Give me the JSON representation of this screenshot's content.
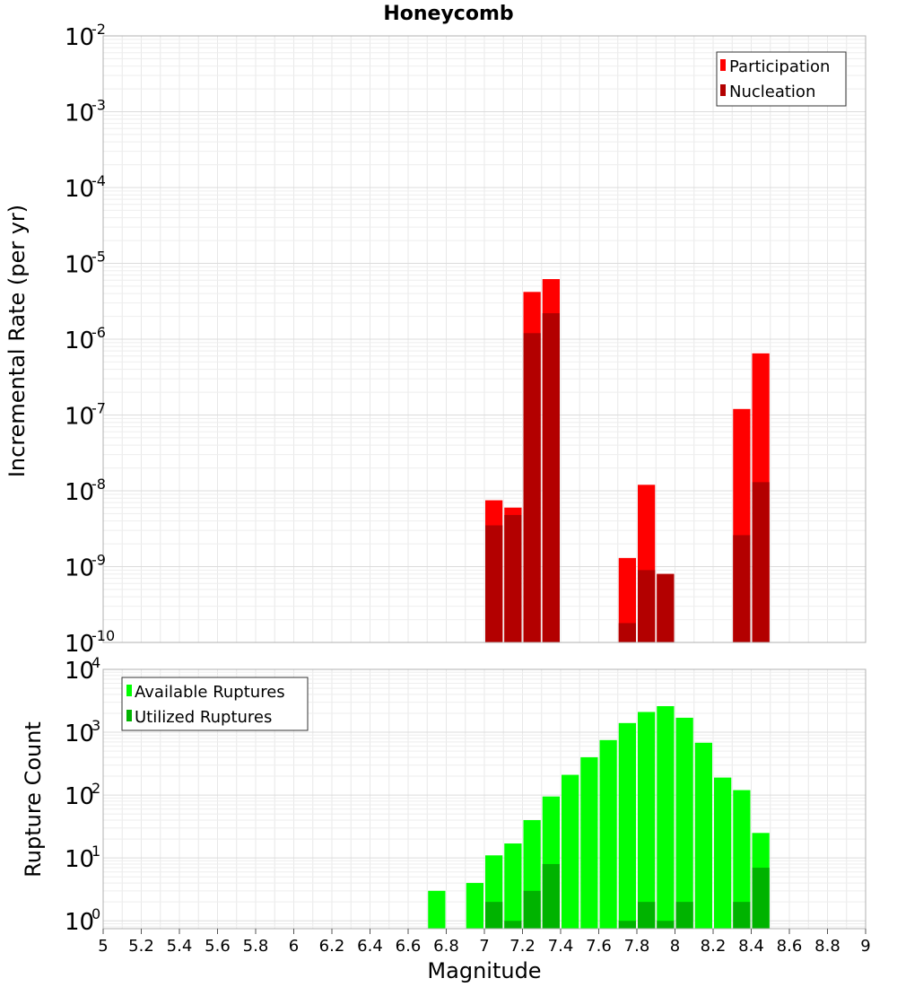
{
  "title": "Honeycomb",
  "xlabel": "Magnitude",
  "x_ticks": [
    "5",
    "5.2",
    "5.4",
    "5.6",
    "5.8",
    "6",
    "6.2",
    "6.4",
    "6.6",
    "6.8",
    "7",
    "7.2",
    "7.4",
    "7.6",
    "7.8",
    "8",
    "8.2",
    "8.4",
    "8.6",
    "8.8",
    "9"
  ],
  "colors": {
    "participation": "#ff0000",
    "nucleation": "#b30000",
    "available": "#00ff00",
    "utilized": "#00b300",
    "grid": "#e8e8e8",
    "frame": "#b0b0b0"
  },
  "chart_data": [
    {
      "type": "bar",
      "ylabel": "Incremental Rate (per yr)",
      "yscale": "log",
      "ylim": [
        1e-10,
        0.01
      ],
      "xlim": [
        5,
        9
      ],
      "y_tick_exponents": [
        "-2",
        "-3",
        "-4",
        "-5",
        "-6",
        "-7",
        "-8",
        "-9",
        "-10"
      ],
      "legend_position": "top-right",
      "legend": [
        "Participation",
        "Nucleation"
      ],
      "x": [
        7.05,
        7.15,
        7.25,
        7.35,
        7.75,
        7.85,
        7.95,
        8.35,
        8.45
      ],
      "series": [
        {
          "name": "Participation",
          "values": [
            7.5e-09,
            6e-09,
            4.2e-06,
            6.2e-06,
            1.3e-09,
            1.2e-08,
            8e-10,
            1.2e-07,
            6.5e-07
          ]
        },
        {
          "name": "Nucleation",
          "values": [
            3.5e-09,
            4.8e-09,
            1.2e-06,
            2.2e-06,
            1.8e-10,
            9e-10,
            8e-10,
            2.6e-09,
            1.3e-08
          ]
        }
      ]
    },
    {
      "type": "bar",
      "ylabel": "Rupture Count",
      "yscale": "log",
      "ylim": [
        0.75,
        10000
      ],
      "xlim": [
        5,
        9
      ],
      "y_tick_exponents": [
        "4",
        "3",
        "2",
        "1",
        "0"
      ],
      "legend_position": "top-left",
      "legend": [
        "Available Ruptures",
        "Utilized Ruptures"
      ],
      "x": [
        6.75,
        6.95,
        7.05,
        7.15,
        7.25,
        7.35,
        7.45,
        7.55,
        7.65,
        7.75,
        7.85,
        7.95,
        8.05,
        8.15,
        8.25,
        8.35,
        8.45
      ],
      "series": [
        {
          "name": "Available Ruptures",
          "values": [
            3,
            4,
            11,
            17,
            40,
            95,
            210,
            400,
            750,
            1400,
            2100,
            2600,
            1700,
            680,
            190,
            120,
            25
          ]
        },
        {
          "name": "Utilized Ruptures",
          "values": [
            0,
            0,
            2,
            1,
            3,
            8,
            0,
            0,
            0,
            1,
            2,
            1,
            2,
            0,
            0,
            2,
            7
          ]
        }
      ]
    }
  ]
}
